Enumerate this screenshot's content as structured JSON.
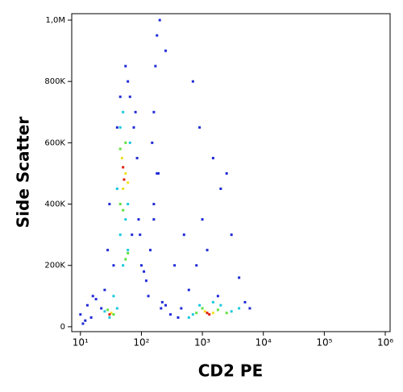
{
  "chart_data": {
    "type": "scatter",
    "x_label": "CD2 PE",
    "y_label": "Side Scatter",
    "xscale": "log",
    "xlim": [
      7.2,
      1200000
    ],
    "xticks": [
      {
        "value": 10,
        "label": "10¹"
      },
      {
        "value": 100,
        "label": "10²"
      },
      {
        "value": 1000,
        "label": "10³"
      },
      {
        "value": 10000,
        "label": "10⁴"
      },
      {
        "value": 100000,
        "label": "10⁵"
      },
      {
        "value": 1000000,
        "label": "10⁶"
      }
    ],
    "ylim": [
      -16000,
      1021000
    ],
    "yticks": [
      0,
      {
        "value": 200000,
        "label": "200K"
      },
      {
        "value": 400000,
        "label": "400K"
      },
      {
        "value": 600000,
        "label": "600K"
      },
      {
        "value": 800000,
        "label": "800K"
      },
      {
        "value": 1000000,
        "label": "1,0M"
      }
    ],
    "series": [
      {
        "color": "#1f2ad6",
        "x": [
          15,
          18,
          25,
          35,
          45,
          60,
          80,
          70,
          40,
          30,
          28,
          55,
          90,
          120,
          150,
          180,
          200,
          160,
          140,
          130,
          170,
          190,
          210,
          220,
          250,
          300,
          400,
          600,
          800,
          1000,
          1500,
          2000,
          3000,
          4000,
          5000,
          6000,
          700,
          900,
          1200,
          2500,
          350,
          450,
          22,
          12,
          10,
          11,
          13,
          16,
          65,
          75,
          85,
          95,
          110,
          100,
          160,
          180,
          250,
          500,
          1800,
          160
        ],
        "values": [
          30000,
          90000,
          120000,
          200000,
          750000,
          800000,
          700000,
          300000,
          650000,
          400000,
          250000,
          850000,
          350000,
          150000,
          600000,
          950000,
          1000000,
          700000,
          250000,
          100000,
          850000,
          500000,
          60000,
          80000,
          70000,
          40000,
          30000,
          120000,
          200000,
          350000,
          550000,
          450000,
          300000,
          160000,
          80000,
          60000,
          800000,
          650000,
          250000,
          500000,
          200000,
          60000,
          60000,
          20000,
          40000,
          10000,
          70000,
          100000,
          750000,
          650000,
          550000,
          300000,
          180000,
          200000,
          350000,
          500000,
          900000,
          300000,
          100000,
          400000
        ]
      },
      {
        "color": "#19c8e0",
        "x": [
          30,
          25,
          40,
          35,
          50,
          60,
          45,
          55,
          40,
          65,
          50,
          45,
          60,
          700,
          900,
          2000,
          3000,
          1500,
          600,
          4000
        ],
        "values": [
          30000,
          50000,
          60000,
          100000,
          200000,
          250000,
          300000,
          350000,
          450000,
          600000,
          700000,
          650000,
          400000,
          40000,
          70000,
          70000,
          50000,
          80000,
          30000,
          60000
        ]
      },
      {
        "color": "#60e040",
        "x": [
          35,
          28,
          55,
          60,
          45,
          50,
          55,
          45,
          1000,
          1800,
          800,
          2500
        ],
        "values": [
          40000,
          55000,
          220000,
          240000,
          400000,
          380000,
          600000,
          580000,
          60000,
          55000,
          45000,
          45000
        ]
      },
      {
        "color": "#f0e020",
        "x": [
          32,
          50,
          55,
          48,
          1100,
          1500,
          60
        ],
        "values": [
          45000,
          450000,
          500000,
          550000,
          50000,
          45000,
          470000
        ]
      },
      {
        "color": "#e02010",
        "x": [
          30,
          52,
          50,
          1200,
          1300
        ],
        "values": [
          40000,
          480000,
          520000,
          45000,
          40000
        ]
      }
    ]
  }
}
